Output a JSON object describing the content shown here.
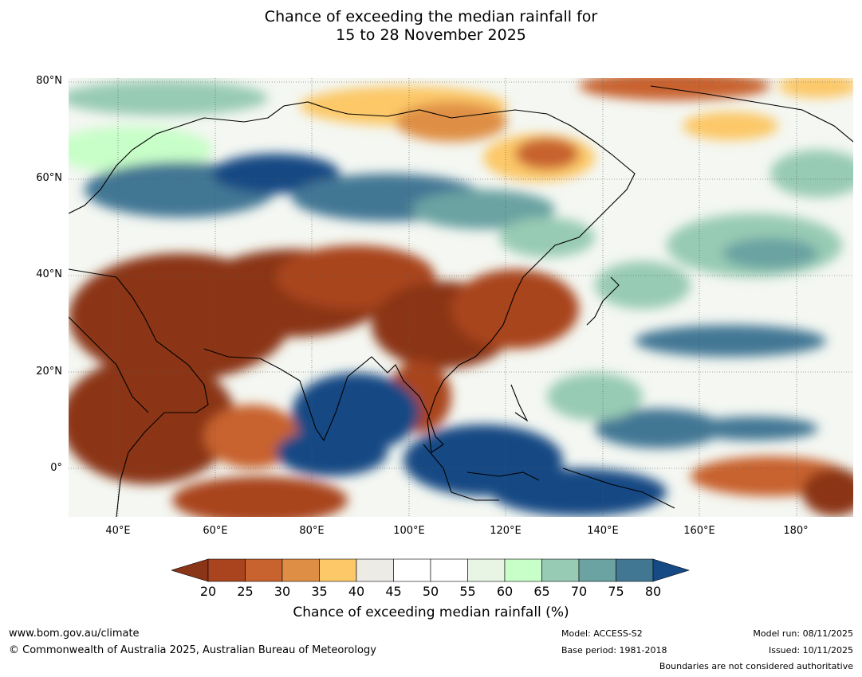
{
  "title_line1": "Chance of exceeding the median rainfall for",
  "title_line2": "15 to 28 November 2025",
  "lat_labels": [
    "80°N",
    "60°N",
    "40°N",
    "20°N",
    "0°"
  ],
  "lon_labels": [
    "40°E",
    "60°E",
    "80°E",
    "100°E",
    "120°E",
    "140°E",
    "160°E",
    "180°"
  ],
  "colorbar": {
    "ticks": [
      "20",
      "25",
      "30",
      "35",
      "40",
      "45",
      "50",
      "55",
      "60",
      "65",
      "70",
      "75",
      "80"
    ],
    "label": "Chance of exceeding median rainfall (%)",
    "colors": [
      "#8b3518",
      "#a9441f",
      "#c8622e",
      "#df8f45",
      "#fcc868",
      "#ecebe6",
      "#ffffff",
      "#ffffff",
      "#e8f5e4",
      "#c8fec8",
      "#98cbb4",
      "#6aa3a2",
      "#427794",
      "#164a84"
    ]
  },
  "footer": {
    "website": "www.bom.gov.au/climate",
    "copyright": "© Commonwealth of Australia 2025, Australian Bureau of Meteorology",
    "model": "Model: ACCESS-S2",
    "base_period": "Base period: 1981-2018",
    "model_run": "Model run: 08/11/2025",
    "issued": "Issued: 10/11/2025",
    "disclaimer": "Boundaries are not considered authoritative"
  }
}
